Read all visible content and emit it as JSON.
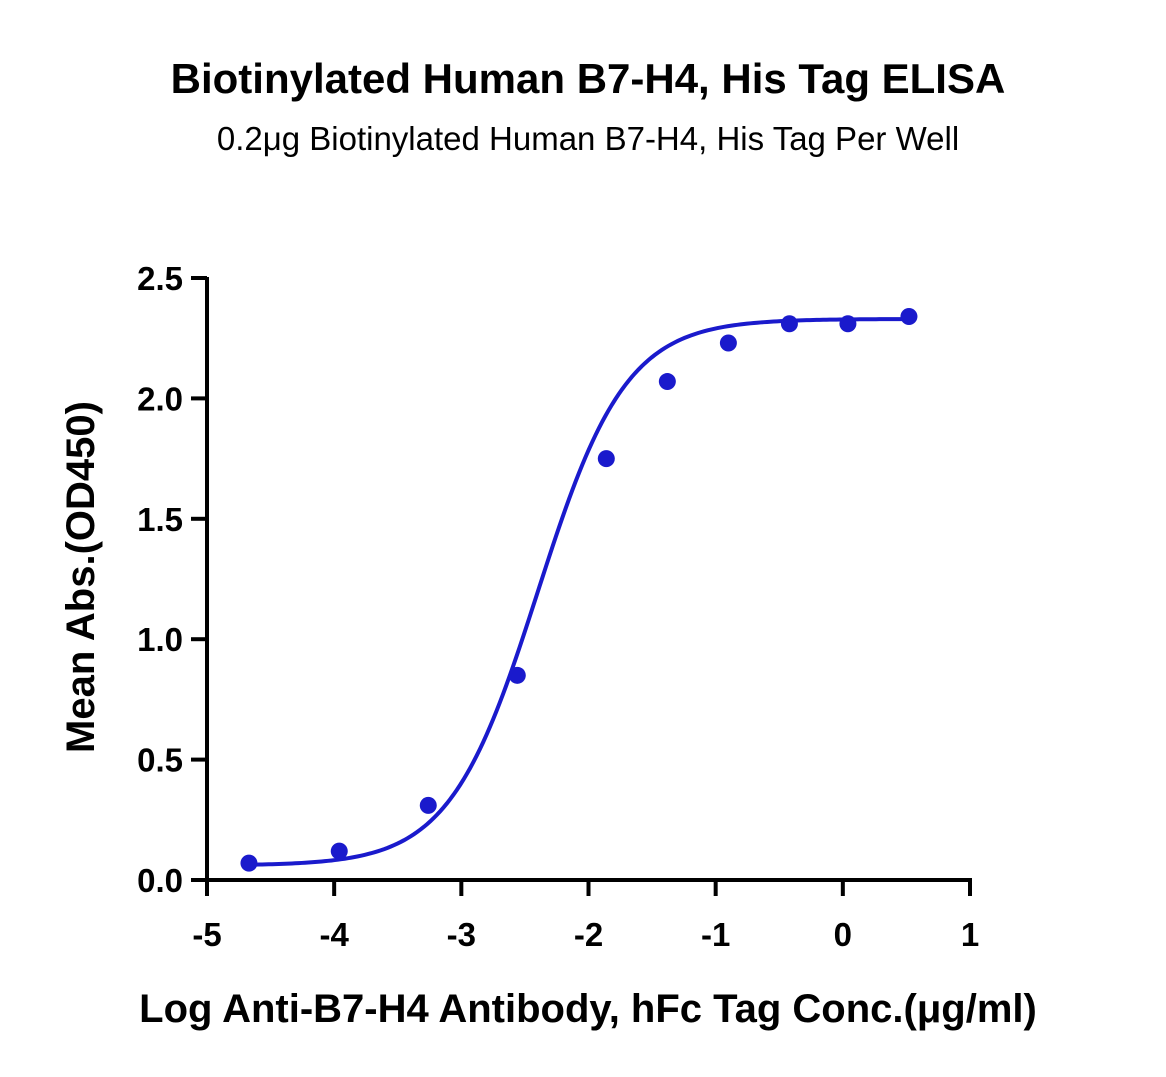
{
  "chart_data": {
    "type": "scatter",
    "title": "Biotinylated Human B7-H4, His Tag ELISA",
    "subtitle": "0.2μg Biotinylated Human B7-H4, His Tag Per Well",
    "xlabel": "Log Anti-B7-H4 Antibody, hFc Tag Conc.(μg/ml)",
    "ylabel": "Mean Abs.(OD450)",
    "xlim": [
      -5,
      1
    ],
    "ylim": [
      0,
      2.5
    ],
    "xticks": [
      "-5",
      "-4",
      "-3",
      "-2",
      "-1",
      "0",
      "1"
    ],
    "yticks": [
      "0.0",
      "0.5",
      "1.0",
      "1.5",
      "2.0",
      "2.5"
    ],
    "grid": false,
    "color": "#1a1acc",
    "series": [
      {
        "x": [
          -4.67,
          -3.96,
          -3.26,
          -2.56,
          -1.86,
          -1.38,
          -0.9,
          -0.42,
          0.04,
          0.52
        ],
        "y": [
          0.07,
          0.12,
          0.31,
          0.85,
          1.75,
          2.07,
          2.23,
          2.31,
          2.31,
          2.34
        ],
        "fit": "sigmoidal"
      }
    ]
  }
}
